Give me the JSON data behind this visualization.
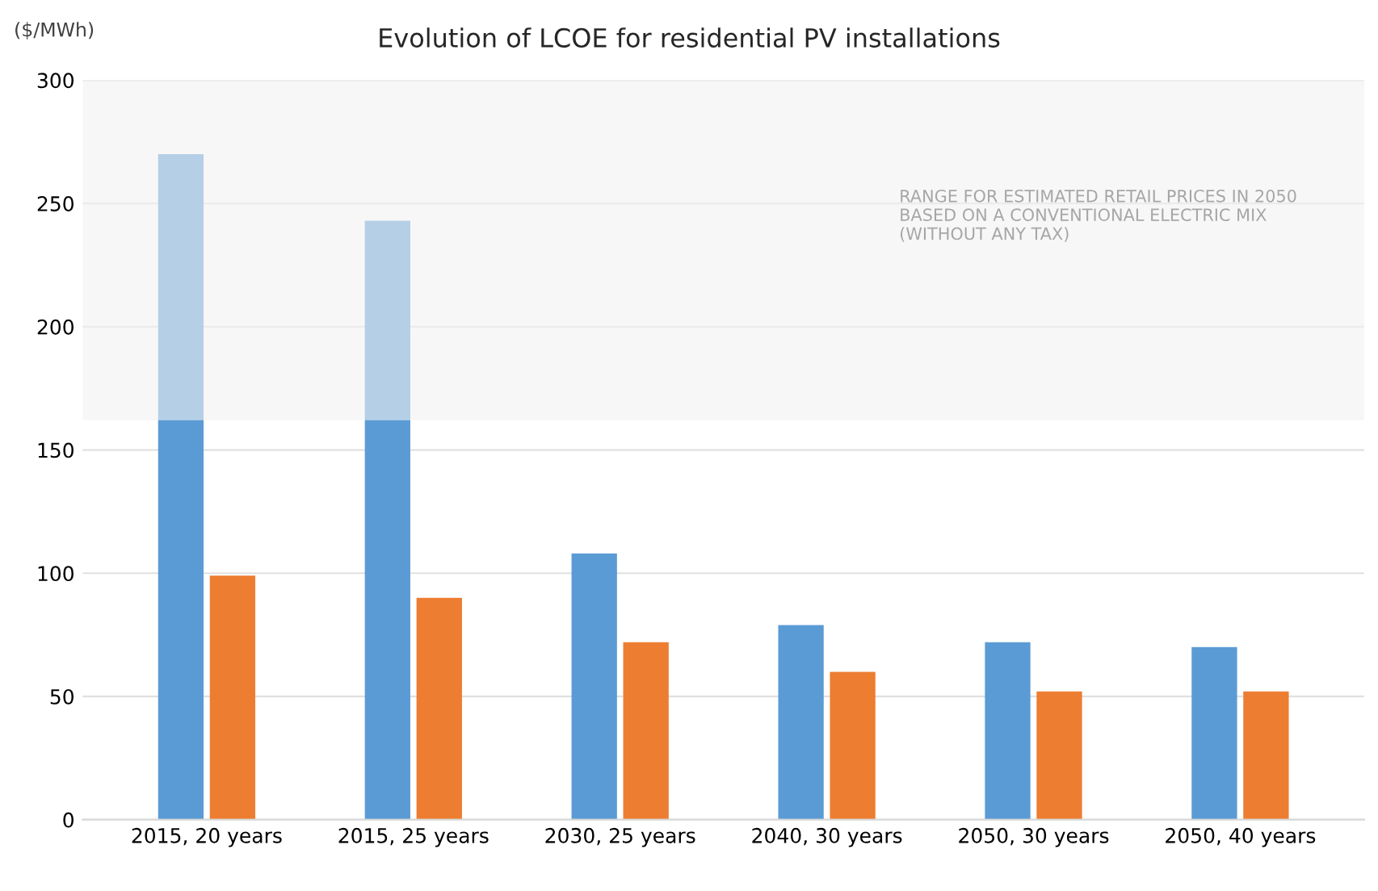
{
  "chart_data": {
    "type": "bar",
    "title": "Evolution of LCOE for residential PV installations",
    "ylabel": "($/MWh)",
    "categories": [
      "2015, 20 years",
      "2015, 25 years",
      "2030, 25 years",
      "2040, 30 years",
      "2050, 30 years",
      "2050, 40 years"
    ],
    "series": [
      {
        "color": "#5b9bd5",
        "values": [
          270,
          243,
          108,
          79,
          72,
          70
        ]
      },
      {
        "color": "#ed7d31",
        "values": [
          99,
          90,
          72,
          60,
          52,
          52
        ]
      }
    ],
    "ylim": [
      0,
      300
    ],
    "yticks": [
      0,
      50,
      100,
      150,
      200,
      250,
      300
    ],
    "grid": "y",
    "bands": [
      {
        "axis": "y",
        "from": 162,
        "to": 300,
        "label": "RANGE FOR ESTIMATED RETAIL PRICES IN 2050\nBASED ON A CONVENTIONAL ELECTRIC MIX\n(WITHOUT ANY TAX)",
        "color": "#f2f2f2"
      }
    ]
  }
}
